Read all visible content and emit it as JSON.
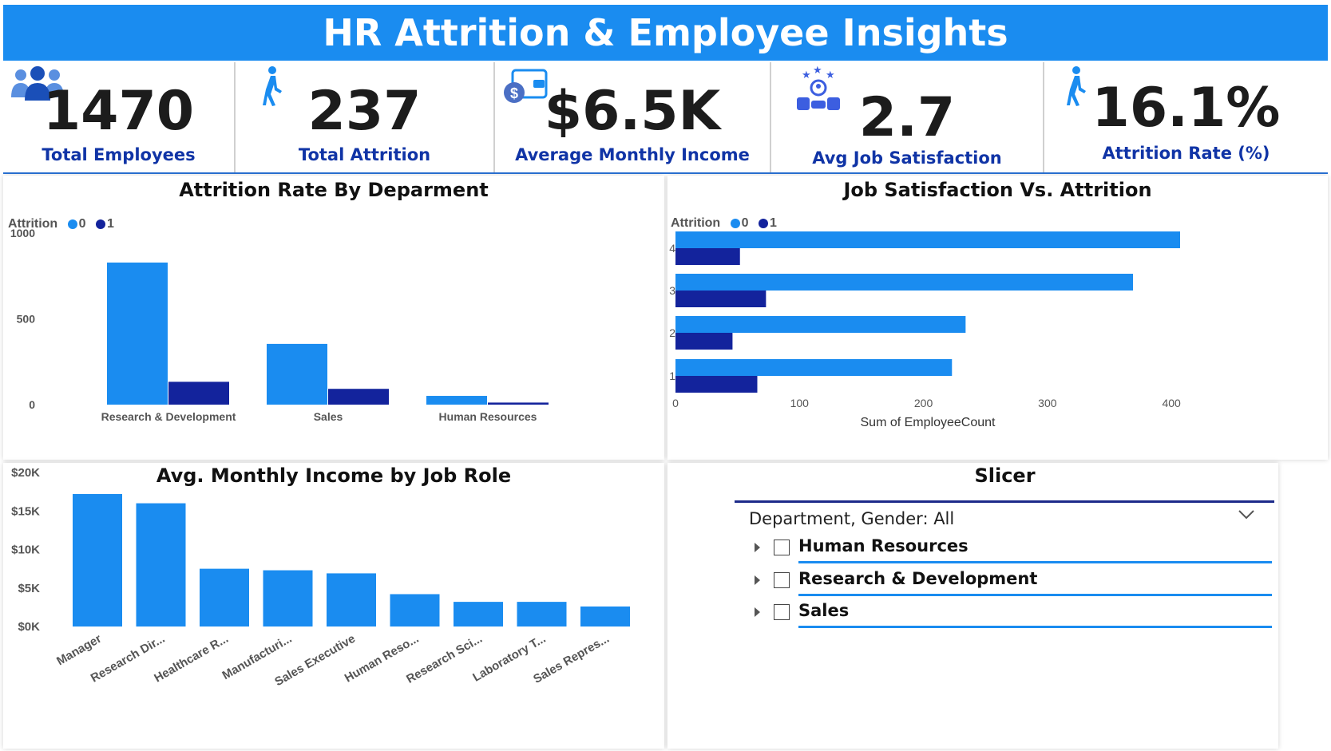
{
  "header": {
    "title": "HR Attrition & Employee Insights"
  },
  "colors": {
    "attrition_0": "#1a8cf0",
    "attrition_1": "#13239c",
    "title_bg": "#1a8cf0",
    "kpi_label": "#1034a6"
  },
  "kpis": [
    {
      "value": "1470",
      "label": "Total Employees",
      "icon": "people-group-icon"
    },
    {
      "value": "237",
      "label": "Total Attrition",
      "icon": "walking-person-icon"
    },
    {
      "value": "$6.5K",
      "label": "Average Monthly Income",
      "icon": "wallet-dollar-icon"
    },
    {
      "value": "2.7",
      "label": "Avg Job Satisfaction",
      "icon": "rating-thumbs-icon"
    },
    {
      "value": "16.1%",
      "label": "Attrition Rate (%)",
      "icon": "walking-person-icon"
    }
  ],
  "chart_data": [
    {
      "type": "bar",
      "title": "Attrition Rate By Deparment",
      "legend_title": "Attrition",
      "categories": [
        "Research & Development",
        "Sales",
        "Human Resources"
      ],
      "series": [
        {
          "name": "0",
          "values": [
            828,
            354,
            51
          ]
        },
        {
          "name": "1",
          "values": [
            133,
            92,
            12
          ]
        }
      ],
      "yticks": [
        "0",
        "500",
        "1000"
      ],
      "ylim": [
        0,
        1000
      ],
      "legend_position": "top-left"
    },
    {
      "type": "bar",
      "orientation": "horizontal",
      "title": "Job Satisfaction Vs. Attrition",
      "legend_title": "Attrition",
      "categories": [
        "4",
        "3",
        "2",
        "1"
      ],
      "series": [
        {
          "name": "0",
          "values": [
            407,
            369,
            234,
            223
          ]
        },
        {
          "name": "1",
          "values": [
            52,
            73,
            46,
            66
          ]
        }
      ],
      "xticks": [
        "0",
        "100",
        "200",
        "300",
        "400"
      ],
      "xlim": [
        0,
        407
      ],
      "xlabel": "Sum of EmployeeCount",
      "legend_position": "top-left"
    },
    {
      "type": "bar",
      "title": "Avg. Monthly Income by Job Role",
      "categories": [
        "Manager",
        "Research Dir...",
        "Healthcare R...",
        "Manufacturi...",
        "Sales Executive",
        "Human Reso...",
        "Research Sci...",
        "Laboratory T...",
        "Sales Repres..."
      ],
      "values": [
        17200,
        16000,
        7500,
        7300,
        6900,
        4200,
        3200,
        3200,
        2600
      ],
      "yticks": [
        "$0K",
        "$5K",
        "$10K",
        "$15K",
        "$20K"
      ],
      "ylim": [
        0,
        20000
      ]
    }
  ],
  "slicer": {
    "title": "Slicer",
    "header": "Department, Gender: All",
    "items": [
      "Human Resources",
      "Research & Development",
      "Sales"
    ]
  }
}
